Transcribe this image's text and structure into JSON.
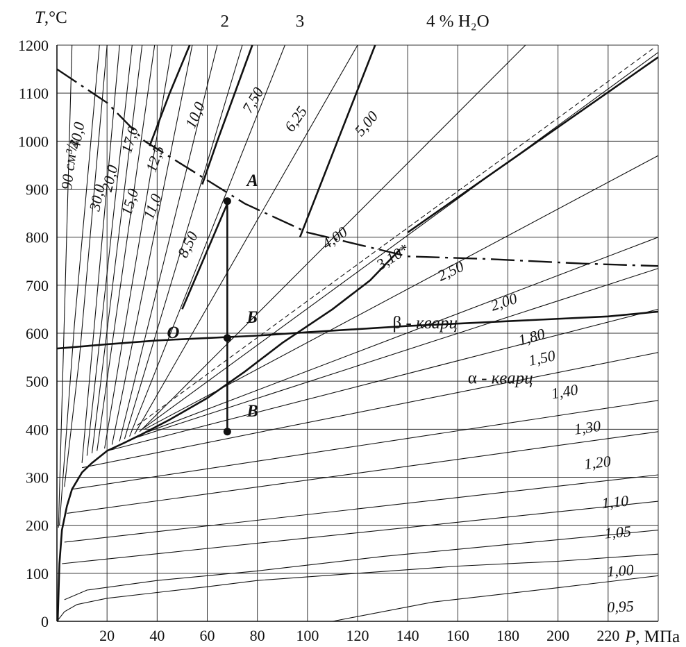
{
  "chart_data": {
    "type": "line",
    "title": "",
    "xlabel_var": "P",
    "xlabel_unit": ", МПа",
    "ylabel_var": "T",
    "ylabel_unit": ",°C",
    "xlim": [
      0,
      240
    ],
    "ylim": [
      0,
      1200
    ],
    "x_ticks": [
      20,
      40,
      60,
      80,
      100,
      120,
      140,
      160,
      180,
      200,
      220
    ],
    "y_ticks": [
      0,
      100,
      200,
      300,
      400,
      500,
      600,
      700,
      800,
      900,
      1000,
      1100,
      1200
    ],
    "grid": true,
    "isochores": [
      {
        "label": "90 см³/г",
        "points": [
          [
            0.6,
            195
          ],
          [
            6,
            1200
          ]
        ],
        "lx": 7,
        "ly": 950,
        "angle": -83
      },
      {
        "label": "40,0",
        "points": [
          [
            1,
            200
          ],
          [
            7,
            620
          ],
          [
            17,
            1200
          ]
        ],
        "lx": 10,
        "ly": 1010,
        "angle": -79
      },
      {
        "label": "30,0",
        "points": [
          [
            3,
            280
          ],
          [
            9,
            550
          ],
          [
            20,
            1200
          ]
        ],
        "lx": 18,
        "ly": 880,
        "angle": -78
      },
      {
        "label": "20,0",
        "points": [
          [
            10,
            330
          ],
          [
            25,
            1200
          ]
        ],
        "lx": 23,
        "ly": 920,
        "angle": -76
      },
      {
        "label": "17,0",
        "points": [
          [
            12,
            345
          ],
          [
            30,
            1200
          ]
        ],
        "lx": 31,
        "ly": 1000,
        "angle": -74
      },
      {
        "label": "15,0",
        "points": [
          [
            14,
            350
          ],
          [
            34,
            1200
          ]
        ],
        "lx": 31,
        "ly": 870,
        "angle": -73
      },
      {
        "label": "12,5",
        "points": [
          [
            16,
            355
          ],
          [
            39,
            1200
          ]
        ],
        "lx": 41,
        "ly": 960,
        "angle": -71
      },
      {
        "label": "11,0",
        "points": [
          [
            19,
            360
          ],
          [
            46,
            1200
          ]
        ],
        "lx": 40,
        "ly": 860,
        "angle": -69
      },
      {
        "label": "10,0",
        "points": [
          [
            22,
            368
          ],
          [
            54,
            1200
          ]
        ],
        "lx": 57,
        "ly": 1050,
        "angle": -66
      },
      {
        "label": "8,50",
        "points": [
          [
            25,
            375
          ],
          [
            64,
            1200
          ]
        ],
        "lx": 54,
        "ly": 780,
        "angle": -64
      },
      {
        "label": "7,50",
        "points": [
          [
            27,
            380
          ],
          [
            74,
            1200
          ]
        ],
        "lx": 80,
        "ly": 1080,
        "angle": -60
      },
      {
        "label": "6,25",
        "points": [
          [
            29,
            385
          ],
          [
            91,
            1200
          ]
        ],
        "lx": 97,
        "ly": 1040,
        "angle": -55
      },
      {
        "label": "5,00",
        "points": [
          [
            31,
            390
          ],
          [
            120,
            1200
          ]
        ],
        "lx": 125,
        "ly": 1030,
        "angle": -50
      },
      {
        "label": "4,00",
        "points": [
          [
            33,
            395
          ],
          [
            187,
            1200
          ]
        ],
        "lx": 112,
        "ly": 790,
        "angle": -35
      },
      {
        "label": "3,10*",
        "points": [
          [
            34,
            400
          ],
          [
            240,
            1185
          ]
        ],
        "lx": 135,
        "ly": 750,
        "angle": -32
      },
      {
        "label": "2,50",
        "points": [
          [
            35,
            400
          ],
          [
            240,
            970
          ]
        ],
        "lx": 158,
        "ly": 720,
        "angle": -25
      },
      {
        "label": "2,00",
        "points": [
          [
            34,
            390
          ],
          [
            240,
            800
          ]
        ],
        "lx": 179,
        "ly": 655,
        "angle": -18
      },
      {
        "label": "1,80",
        "points": [
          [
            30,
            380
          ],
          [
            240,
            735
          ]
        ],
        "lx": 190,
        "ly": 582,
        "angle": -16
      },
      {
        "label": "1,50",
        "points": [
          [
            20,
            355
          ],
          [
            240,
            650
          ]
        ],
        "lx": 194,
        "ly": 538,
        "angle": -12
      },
      {
        "label": "1,40",
        "points": [
          [
            10,
            320
          ],
          [
            240,
            560
          ]
        ],
        "lx": 203,
        "ly": 468,
        "angle": -10
      },
      {
        "label": "1,30",
        "points": [
          [
            6,
            275
          ],
          [
            240,
            460
          ]
        ],
        "lx": 212,
        "ly": 393,
        "angle": -8
      },
      {
        "label": "1,20",
        "points": [
          [
            4,
            225
          ],
          [
            240,
            395
          ]
        ],
        "lx": 216,
        "ly": 320,
        "angle": -7
      },
      {
        "label": "1,10",
        "points": [
          [
            3,
            165
          ],
          [
            240,
            305
          ]
        ],
        "lx": 223,
        "ly": 238,
        "angle": -6
      },
      {
        "label": "1,05",
        "points": [
          [
            2,
            120
          ],
          [
            240,
            250
          ]
        ],
        "lx": 224,
        "ly": 175,
        "angle": -5
      },
      {
        "label": "1,00",
        "points": [
          [
            3,
            45
          ],
          [
            12,
            65
          ],
          [
            40,
            85
          ],
          [
            80,
            105
          ],
          [
            130,
            135
          ],
          [
            240,
            190
          ]
        ],
        "lx": 225,
        "ly": 95,
        "angle": -4
      },
      {
        "label": "0,95",
        "points": [
          [
            110,
            0
          ],
          [
            150,
            40
          ],
          [
            200,
            70
          ],
          [
            240,
            95
          ]
        ],
        "lx": 225,
        "ly": 20,
        "angle": -3
      }
    ],
    "lower_curves": [
      [
        [
          0,
          0
        ],
        [
          3,
          20
        ],
        [
          8,
          35
        ],
        [
          20,
          48
        ],
        [
          40,
          60
        ],
        [
          60,
          72
        ],
        [
          80,
          85
        ],
        [
          120,
          100
        ],
        [
          160,
          115
        ],
        [
          200,
          125
        ],
        [
          240,
          140
        ]
      ]
    ],
    "saturation_curve": [
      [
        0.3,
        0
      ],
      [
        1,
        120
      ],
      [
        2,
        190
      ],
      [
        4,
        240
      ],
      [
        6,
        275
      ],
      [
        10,
        310
      ],
      [
        14,
        330
      ],
      [
        20,
        355
      ],
      [
        27,
        372
      ],
      [
        34,
        390
      ],
      [
        45,
        420
      ],
      [
        60,
        465
      ],
      [
        75,
        520
      ],
      [
        90,
        580
      ],
      [
        110,
        650
      ],
      [
        125,
        710
      ],
      [
        137,
        775
      ]
    ],
    "wet_isopleths": [
      {
        "label": "2",
        "points": [
          [
            58,
            910
          ],
          [
            64,
            1000
          ],
          [
            78,
            1200
          ]
        ],
        "lx": 67,
        "ly": 1250
      },
      {
        "label": "3",
        "points": [
          [
            97,
            800
          ],
          [
            112,
            1000
          ],
          [
            127,
            1200
          ]
        ],
        "lx": 97,
        "ly": 1250
      },
      {
        "label": "4 % H₂O",
        "points": [
          [
            140,
            810
          ],
          [
            240,
            1175
          ]
        ],
        "lx": 160,
        "ly": 1250
      },
      {
        "label": "",
        "points": [
          [
            37,
            990
          ],
          [
            45,
            1100
          ],
          [
            53,
            1200
          ]
        ],
        "lx": 0,
        "ly": 0
      }
    ],
    "dashdot_curve": [
      [
        0,
        1150
      ],
      [
        20,
        1080
      ],
      [
        35,
        1000
      ],
      [
        55,
        935
      ],
      [
        75,
        870
      ],
      [
        100,
        810
      ],
      [
        140,
        760
      ],
      [
        170,
        755
      ],
      [
        210,
        745
      ],
      [
        240,
        740
      ]
    ],
    "quartz_transition": [
      [
        0,
        568
      ],
      [
        20,
        577
      ],
      [
        40,
        585
      ],
      [
        60,
        590
      ],
      [
        80,
        595
      ],
      [
        100,
        602
      ],
      [
        140,
        615
      ],
      [
        180,
        625
      ],
      [
        220,
        635
      ],
      [
        240,
        645
      ]
    ],
    "quartz_labels": [
      {
        "label": "β - кварц",
        "x": 134,
        "y": 610
      },
      {
        "label": "α - кварц",
        "x": 164,
        "y": 495
      }
    ],
    "segment_O": [
      [
        50,
        650
      ],
      [
        68,
        870
      ]
    ],
    "points": [
      {
        "label": "A",
        "x": 68,
        "y": 875
      },
      {
        "label": "Б",
        "x": 68,
        "y": 590
      },
      {
        "label": "В",
        "x": 68,
        "y": 395
      },
      {
        "label": "O",
        "x": 45,
        "y": 590
      }
    ]
  }
}
